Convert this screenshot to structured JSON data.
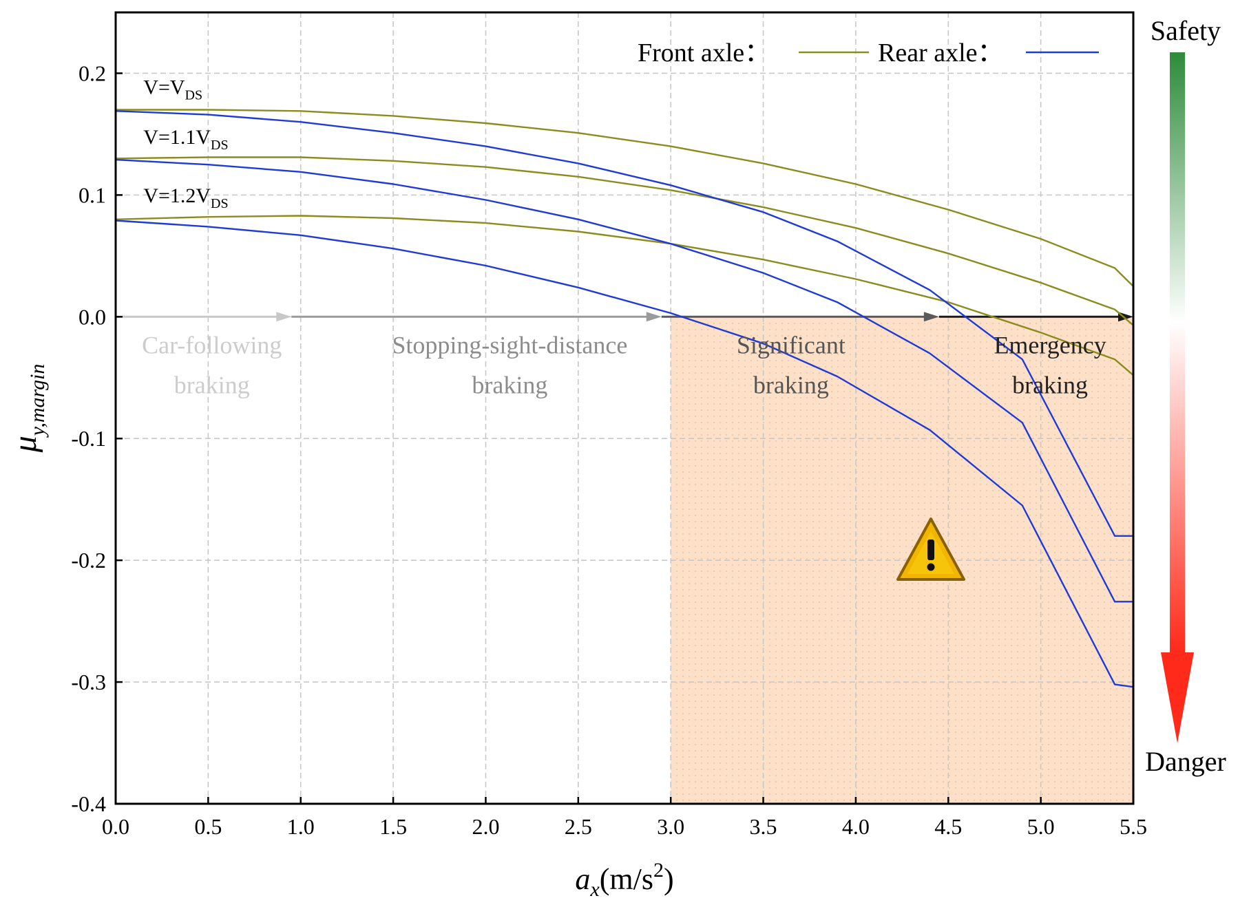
{
  "chart_data": {
    "type": "line",
    "xlabel": {
      "main": "a",
      "sub": "x",
      "unit": "(m/s",
      "sup": "2",
      "close": ")"
    },
    "ylabel": {
      "main": "μ",
      "sub": "y,margin"
    },
    "xlim": [
      0,
      5.5
    ],
    "ylim": [
      -0.4,
      0.25
    ],
    "xticks": [
      0,
      0.5,
      1,
      1.5,
      2,
      2.5,
      3,
      3.5,
      4,
      4.5,
      5,
      5.5
    ],
    "xtick_labels": [
      "0.0",
      "0.5",
      "1.0",
      "1.5",
      "2.0",
      "2.5",
      "3.0",
      "3.5",
      "4.0",
      "4.5",
      "5.0",
      "5.5"
    ],
    "yticks": [
      -0.4,
      -0.3,
      -0.2,
      -0.1,
      0.0,
      0.1,
      0.2
    ],
    "ytick_labels": [
      "-0.4",
      "-0.3",
      "-0.2",
      "-0.1",
      "0.0",
      "0.1",
      "0.2"
    ],
    "grid": true,
    "legend": {
      "position": "top-right",
      "entries": [
        {
          "label": "Front axle：",
          "color": "#8b8b1e"
        },
        {
          "label": "Rear axle：",
          "color": "#1f3ad6"
        }
      ]
    },
    "danger_region": {
      "x_from": 3.0,
      "x_to": 5.5,
      "y_from": -0.4,
      "y_to": 0.0,
      "color": "#fde0c8"
    },
    "series": [
      {
        "name": "Front axle, V=VDS",
        "axle": "front",
        "color": "#8b8b1e",
        "x": [
          0,
          0.5,
          1,
          1.5,
          2,
          2.5,
          3,
          3.5,
          4,
          4.5,
          5,
          5.4,
          5.5
        ],
        "y": [
          0.17,
          0.17,
          0.169,
          0.165,
          0.159,
          0.151,
          0.14,
          0.126,
          0.109,
          0.088,
          0.064,
          0.04,
          0.025
        ]
      },
      {
        "name": "Front axle, V=1.1VDS",
        "axle": "front",
        "color": "#8b8b1e",
        "x": [
          0,
          0.5,
          1,
          1.5,
          2,
          2.5,
          3,
          3.5,
          4,
          4.5,
          5,
          5.4,
          5.5
        ],
        "y": [
          0.13,
          0.131,
          0.131,
          0.128,
          0.123,
          0.115,
          0.104,
          0.09,
          0.073,
          0.052,
          0.028,
          0.006,
          -0.007
        ]
      },
      {
        "name": "Front axle, V=1.2VDS",
        "axle": "front",
        "color": "#8b8b1e",
        "x": [
          0,
          0.5,
          1,
          1.5,
          2,
          2.5,
          3,
          3.5,
          4,
          4.5,
          5,
          5.4,
          5.5
        ],
        "y": [
          0.08,
          0.082,
          0.083,
          0.081,
          0.077,
          0.07,
          0.06,
          0.047,
          0.031,
          0.012,
          -0.013,
          -0.035,
          -0.048
        ]
      },
      {
        "name": "Rear axle, V=VDS",
        "axle": "rear",
        "color": "#1f3ad6",
        "x": [
          0,
          0.5,
          1,
          1.5,
          2,
          2.5,
          3,
          3.5,
          3.9,
          4.4,
          4.9,
          5.4,
          5.5
        ],
        "y": [
          0.169,
          0.166,
          0.16,
          0.151,
          0.14,
          0.126,
          0.108,
          0.086,
          0.062,
          0.022,
          -0.035,
          -0.18,
          -0.18
        ]
      },
      {
        "name": "Rear axle, V=1.1VDS",
        "axle": "rear",
        "color": "#1f3ad6",
        "x": [
          0,
          0.5,
          1,
          1.5,
          2,
          2.5,
          3,
          3.5,
          3.9,
          4.4,
          4.9,
          5.4,
          5.5
        ],
        "y": [
          0.129,
          0.125,
          0.119,
          0.109,
          0.096,
          0.08,
          0.06,
          0.036,
          0.012,
          -0.03,
          -0.087,
          -0.234,
          -0.234
        ]
      },
      {
        "name": "Rear axle, V=1.2VDS",
        "axle": "rear",
        "color": "#1f3ad6",
        "x": [
          0,
          0.5,
          1,
          1.5,
          2,
          2.5,
          3,
          3.5,
          3.9,
          4.4,
          4.9,
          5.4,
          5.5
        ],
        "y": [
          0.079,
          0.074,
          0.067,
          0.056,
          0.042,
          0.024,
          0.003,
          -0.022,
          -0.049,
          -0.093,
          -0.155,
          -0.302,
          -0.304
        ]
      }
    ],
    "curve_labels": [
      {
        "main": "V=V",
        "sub": "DS",
        "x": 0.15,
        "y": 0.183
      },
      {
        "main": "V=1.1V",
        "sub": "DS",
        "x": 0.15,
        "y": 0.142
      },
      {
        "main": "V=1.2V",
        "sub": "DS",
        "x": 0.15,
        "y": 0.094
      }
    ],
    "zero_arrow": {
      "y": 0.0,
      "stops": [
        0.95,
        2.95,
        4.45,
        5.5
      ],
      "colors": [
        "#c8c8c8",
        "#9a9a9a",
        "#5a5a5a",
        "#1a1a1a"
      ]
    },
    "phases": [
      {
        "line1": "Car-following",
        "line2": "braking",
        "x": 0.52,
        "color": "#cccccc"
      },
      {
        "line1": "Stopping-sight-distance",
        "line2": "braking",
        "x": 2.13,
        "color": "#8c8c8c"
      },
      {
        "line1": "Significant",
        "line2": "braking",
        "x": 3.65,
        "color": "#555555"
      },
      {
        "line1": "Emergency",
        "line2": "braking",
        "x": 5.05,
        "color": "#222222"
      }
    ],
    "scale_bar": {
      "top_label": "Safety",
      "bottom_label": "Danger",
      "top_color": "#2e8b3a",
      "mid_color": "#ffffff",
      "bottom_color": "#ff2a1a"
    },
    "warning_icon": "warning-triangle-icon"
  }
}
